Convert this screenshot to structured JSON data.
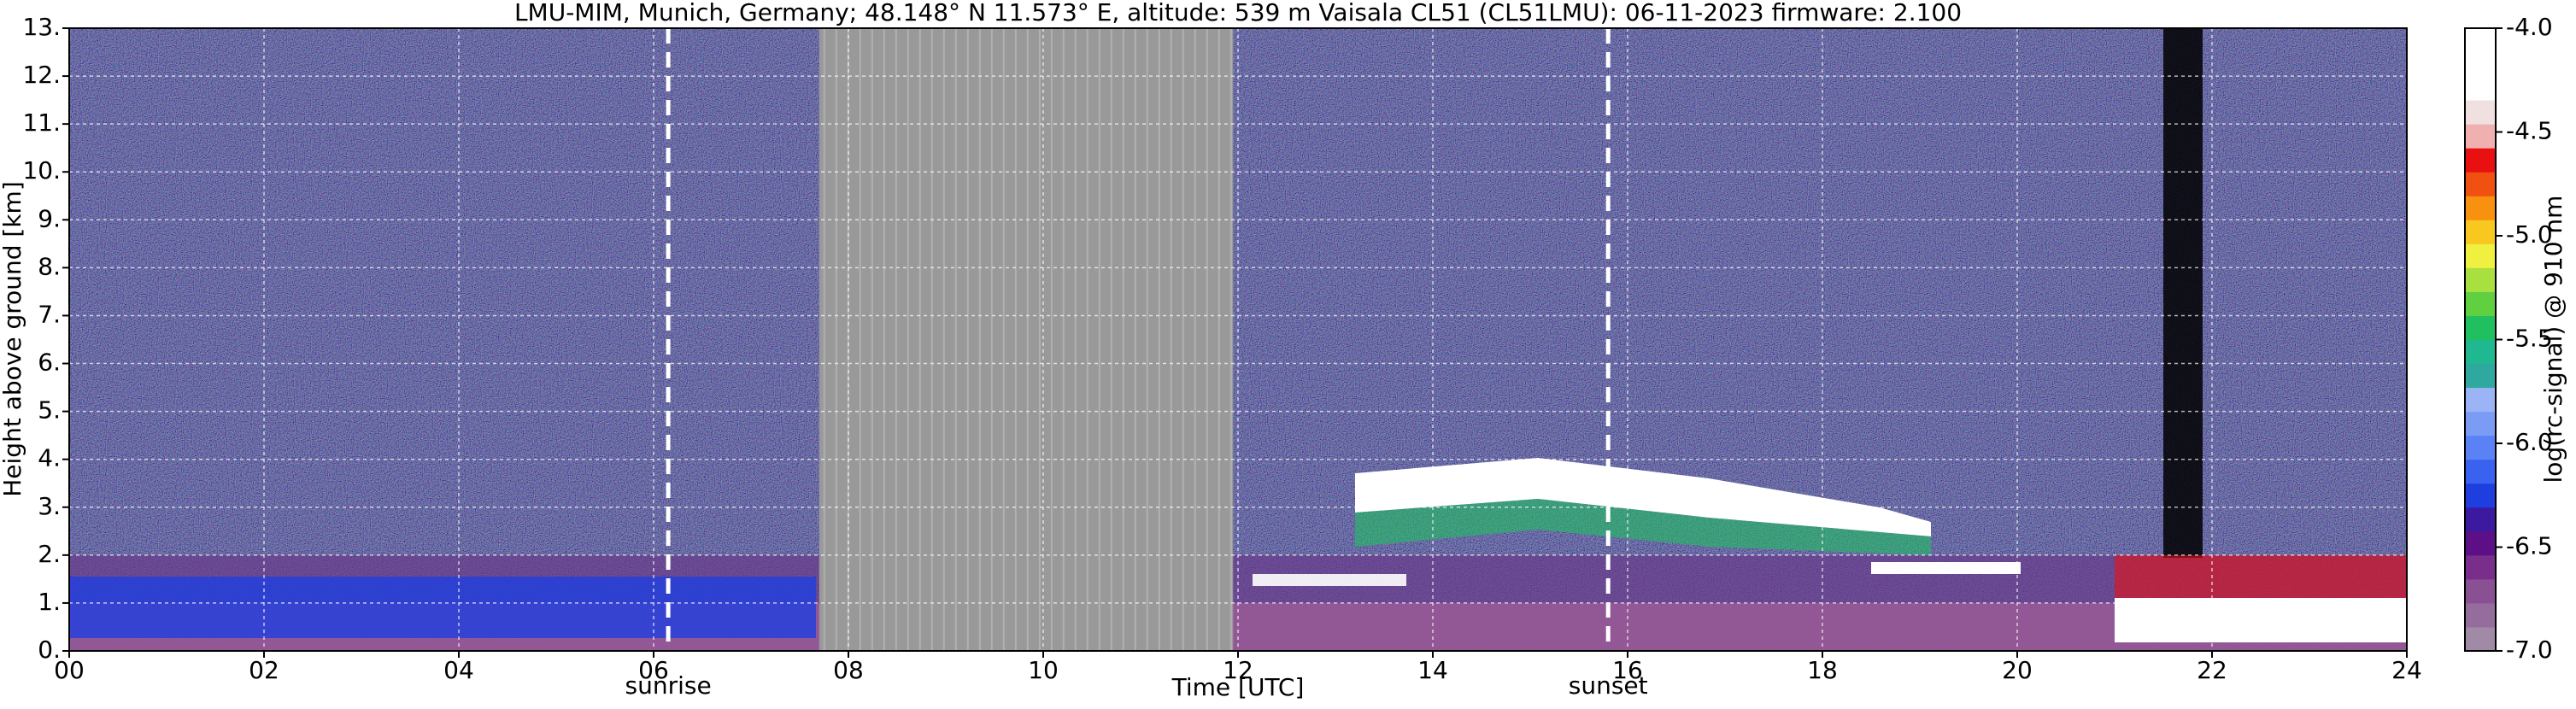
{
  "chart_data": {
    "type": "ceilometer",
    "title": "LMU-MIM, Munich, Germany; 48.148° N 11.573° E, altitude: 539 m    Vaisala CL51 (CL51LMU): 06-11-2023    firmware: 2.100",
    "xlabel": "Time [UTC]",
    "ylabel": "Height above ground [km]",
    "xlim": [
      0,
      24
    ],
    "xticks": [
      {
        "value": 0,
        "label": "00"
      },
      {
        "value": 2,
        "label": "02"
      },
      {
        "value": 4,
        "label": "04"
      },
      {
        "value": 6,
        "label": "06"
      },
      {
        "value": 8,
        "label": "08"
      },
      10,
      12,
      14,
      16,
      18,
      20,
      22,
      24
    ],
    "ylim": [
      0,
      13
    ],
    "yticks": [
      {
        "value": 0,
        "label": "0."
      },
      {
        "value": 1,
        "label": "1."
      },
      {
        "value": 2,
        "label": "2."
      },
      {
        "value": 3,
        "label": "3."
      },
      {
        "value": 4,
        "label": "4."
      },
      {
        "value": 5,
        "label": "5."
      },
      {
        "value": 6,
        "label": "6."
      },
      {
        "value": 7,
        "label": "7."
      },
      {
        "value": 8,
        "label": "8."
      },
      {
        "value": 9,
        "label": "9."
      },
      {
        "value": 10,
        "label": "10."
      },
      {
        "value": 11,
        "label": "11."
      },
      {
        "value": 12,
        "label": "12."
      },
      {
        "value": 13,
        "label": "13."
      }
    ],
    "grid": true,
    "no_data": [
      7.7,
      11.95
    ],
    "markers": [
      {
        "x": 6.15,
        "label": "sunrise"
      },
      {
        "x": 15.8,
        "label": "sunset"
      }
    ],
    "colorbar": {
      "label": "log(rc-signal) @ 910 nm",
      "clim": [
        -7,
        -4
      ],
      "ticks": [
        {
          "value": -4,
          "label": "-4.0"
        },
        -4.5,
        {
          "value": -5,
          "label": "-5.0"
        },
        -5.5,
        {
          "value": -6,
          "label": "-6.0"
        },
        -6.5,
        {
          "value": -7,
          "label": "-7.0"
        }
      ],
      "colors": [
        "#a08aa6",
        "#946d9c",
        "#8a5094",
        "#7a2e8c",
        "#5c0f87",
        "#3c1aa0",
        "#1f3ee0",
        "#3a62f0",
        "#5a82f5",
        "#7a9cf5",
        "#9ab4f5",
        "#2fa8a0",
        "#20b890",
        "#20c060",
        "#60d040",
        "#a8e040",
        "#f0f040",
        "#f8c820",
        "#f89010",
        "#f05010",
        "#e81010",
        "#f0b0b0",
        "#f0e0e0",
        "#ffffff",
        "#ffffff",
        "#ffffff"
      ]
    }
  }
}
